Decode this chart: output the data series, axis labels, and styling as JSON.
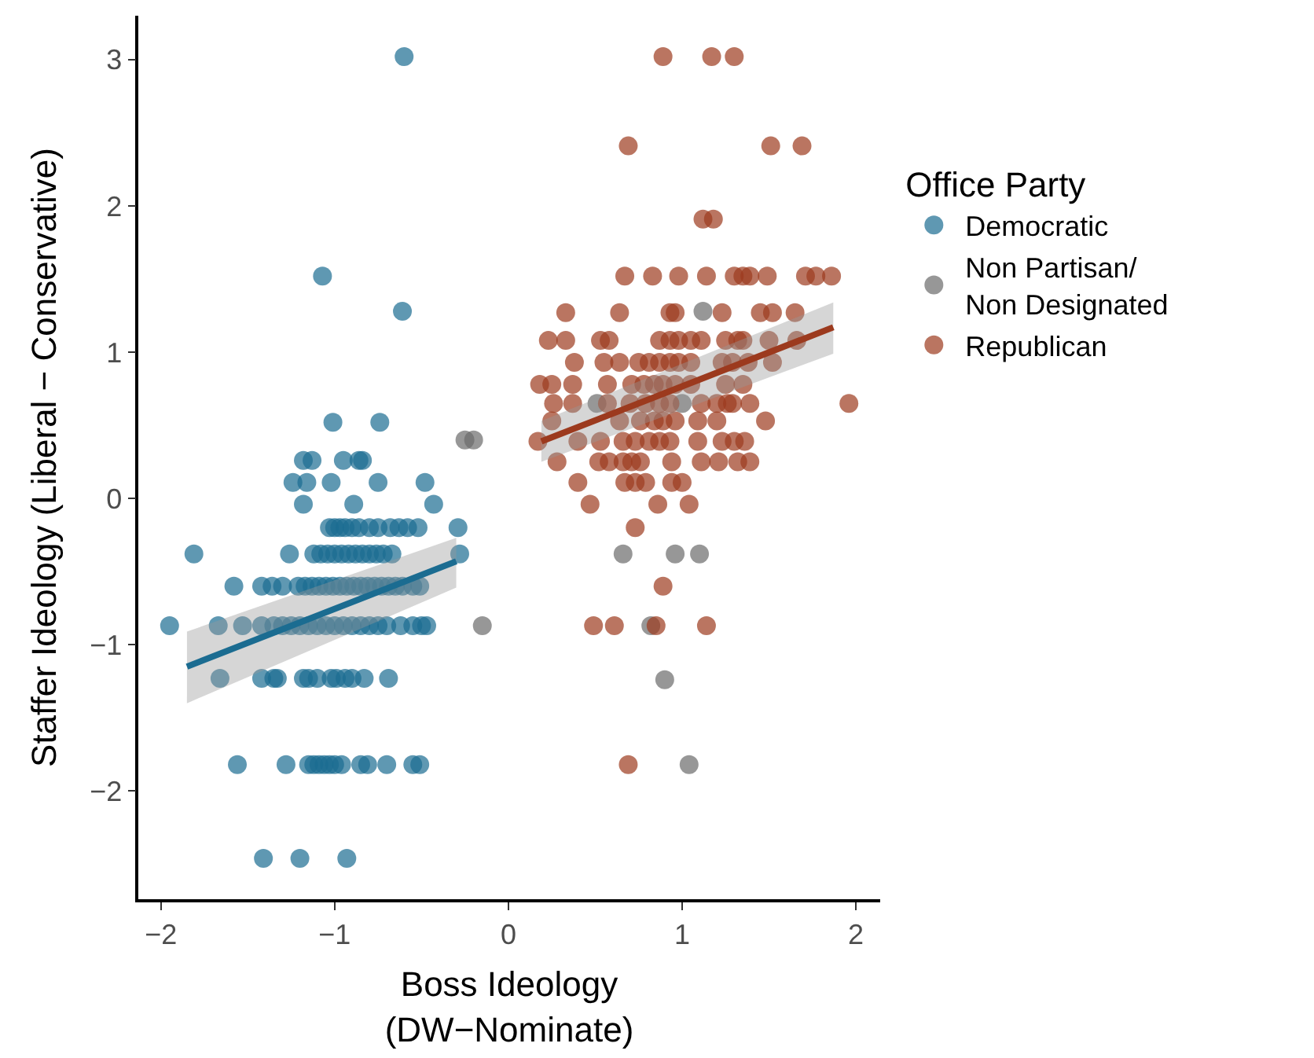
{
  "chart_data": {
    "type": "scatter",
    "xlabel": "Boss Ideology\n(DW−Nominate)",
    "ylabel": "Staffer Ideology (Liberal − Conservative)",
    "legend_title": "Office Party",
    "legend": "right",
    "grid": false,
    "marker": "circle",
    "line_style": "solid",
    "xlim": [
      -2.13,
      2.14
    ],
    "ylim": [
      -2.74,
      3.3
    ],
    "xticks": [
      {
        "value": -2,
        "label": "−2"
      },
      {
        "value": -1,
        "label": "−1"
      },
      0,
      1,
      2
    ],
    "yticks": [
      {
        "value": -2,
        "label": "−2"
      },
      {
        "value": -1,
        "label": "−1"
      },
      0,
      1,
      2,
      3
    ],
    "series": [
      {
        "name": "Democratic",
        "color": "#1b6c91",
        "x": [
          -0.6,
          -1.07,
          -0.61,
          -1.01,
          -0.74,
          -1.18,
          -1.13,
          -0.95,
          -0.86,
          -0.84,
          -1.24,
          -1.16,
          -1.02,
          -0.75,
          -0.48,
          -1.18,
          -0.89,
          -0.43,
          -1.03,
          -1.0,
          -0.97,
          -0.94,
          -0.9,
          -0.86,
          -0.8,
          -0.75,
          -0.68,
          -0.63,
          -0.58,
          -0.52,
          -0.29,
          -1.81,
          -1.26,
          -1.12,
          -1.08,
          -1.04,
          -1.0,
          -0.96,
          -0.92,
          -0.88,
          -0.84,
          -0.8,
          -0.76,
          -0.72,
          -0.67,
          -0.28,
          -1.58,
          -1.42,
          -1.36,
          -1.3,
          -1.21,
          -1.17,
          -1.13,
          -1.09,
          -1.05,
          -1.01,
          -0.97,
          -0.93,
          -0.89,
          -0.85,
          -0.81,
          -0.77,
          -0.73,
          -0.69,
          -0.65,
          -0.61,
          -0.55,
          -0.51,
          -1.95,
          -1.67,
          -1.53,
          -1.42,
          -1.35,
          -1.3,
          -1.25,
          -1.2,
          -1.15,
          -1.1,
          -1.05,
          -1.0,
          -0.95,
          -0.9,
          -0.85,
          -0.8,
          -0.75,
          -0.7,
          -0.62,
          -0.55,
          -0.5,
          -0.47,
          -1.66,
          -1.42,
          -1.35,
          -1.33,
          -1.18,
          -1.15,
          -1.1,
          -1.02,
          -0.99,
          -0.94,
          -0.9,
          -0.83,
          -0.69,
          -1.56,
          -1.28,
          -1.15,
          -1.12,
          -1.09,
          -1.06,
          -1.03,
          -1.0,
          -0.96,
          -0.85,
          -0.81,
          -0.7,
          -0.55,
          -0.51,
          -1.41,
          -1.2,
          -0.93
        ],
        "values": [
          3.02,
          1.52,
          1.28,
          0.52,
          0.52,
          0.26,
          0.26,
          0.26,
          0.26,
          0.26,
          0.11,
          0.11,
          0.11,
          0.11,
          0.11,
          -0.04,
          -0.04,
          -0.04,
          -0.2,
          -0.2,
          -0.2,
          -0.2,
          -0.2,
          -0.2,
          -0.2,
          -0.2,
          -0.2,
          -0.2,
          -0.2,
          -0.2,
          -0.2,
          -0.38,
          -0.38,
          -0.38,
          -0.38,
          -0.38,
          -0.38,
          -0.38,
          -0.38,
          -0.38,
          -0.38,
          -0.38,
          -0.38,
          -0.38,
          -0.38,
          -0.38,
          -0.6,
          -0.6,
          -0.6,
          -0.6,
          -0.6,
          -0.6,
          -0.6,
          -0.6,
          -0.6,
          -0.6,
          -0.6,
          -0.6,
          -0.6,
          -0.6,
          -0.6,
          -0.6,
          -0.6,
          -0.6,
          -0.6,
          -0.6,
          -0.6,
          -0.6,
          -0.87,
          -0.87,
          -0.87,
          -0.87,
          -0.87,
          -0.87,
          -0.87,
          -0.87,
          -0.87,
          -0.87,
          -0.87,
          -0.87,
          -0.87,
          -0.87,
          -0.87,
          -0.87,
          -0.87,
          -0.87,
          -0.87,
          -0.87,
          -0.87,
          -0.87,
          -1.23,
          -1.23,
          -1.23,
          -1.23,
          -1.23,
          -1.23,
          -1.23,
          -1.23,
          -1.23,
          -1.23,
          -1.23,
          -1.23,
          -1.23,
          -1.82,
          -1.82,
          -1.82,
          -1.82,
          -1.82,
          -1.82,
          -1.82,
          -1.82,
          -1.82,
          -1.82,
          -1.82,
          -1.82,
          -1.82,
          -1.82,
          -2.46,
          -2.46,
          -2.46
        ]
      },
      {
        "name": "Non Partisan/\nNon Designated",
        "color": "#6b6b6b",
        "x": [
          -0.25,
          -0.2,
          -0.15,
          1.12,
          0.51,
          1.0,
          0.66,
          0.96,
          1.1,
          0.82,
          0.9,
          1.04
        ],
        "values": [
          0.4,
          0.4,
          -0.87,
          1.28,
          0.65,
          0.65,
          -0.38,
          -0.38,
          -0.38,
          -0.87,
          -1.24,
          -1.82
        ]
      },
      {
        "name": "Republican",
        "color": "#9c3a1e",
        "x": [
          0.89,
          1.17,
          1.3,
          0.69,
          1.51,
          1.69,
          1.12,
          1.18,
          0.73,
          0.89,
          0.49,
          0.61,
          0.85,
          1.14,
          0.69,
          0.67,
          0.83,
          0.98,
          1.14,
          1.3,
          1.35,
          1.39,
          1.49,
          1.71,
          1.77,
          1.86,
          0.33,
          0.64,
          0.93,
          0.96,
          1.23,
          1.45,
          1.52,
          1.65,
          0.23,
          0.33,
          0.53,
          0.58,
          0.87,
          0.93,
          0.98,
          1.05,
          1.11,
          1.25,
          1.32,
          1.35,
          1.5,
          1.66,
          0.38,
          0.55,
          0.64,
          0.75,
          0.81,
          0.87,
          0.93,
          0.98,
          1.05,
          1.23,
          1.29,
          1.38,
          1.52,
          0.18,
          0.25,
          0.37,
          0.57,
          0.71,
          0.78,
          0.84,
          0.89,
          0.96,
          1.05,
          1.25,
          1.35,
          0.26,
          0.37,
          0.57,
          0.7,
          0.79,
          0.87,
          0.93,
          1.11,
          1.2,
          1.26,
          1.29,
          1.39,
          1.96,
          0.25,
          0.64,
          0.76,
          0.84,
          0.89,
          0.96,
          1.09,
          1.2,
          1.48,
          0.17,
          0.4,
          0.53,
          0.66,
          0.73,
          0.81,
          0.87,
          0.93,
          1.09,
          1.23,
          1.3,
          1.36,
          0.28,
          0.52,
          0.58,
          0.66,
          0.71,
          0.76,
          0.94,
          1.11,
          1.21,
          1.32,
          1.39,
          0.4,
          0.67,
          0.73,
          0.79,
          0.94,
          1.0,
          0.47,
          0.86,
          1.04
        ],
        "values": [
          3.02,
          3.02,
          3.02,
          2.41,
          2.41,
          2.41,
          1.91,
          1.91,
          -0.2,
          -0.6,
          -0.87,
          -0.87,
          -0.87,
          -0.87,
          -1.82,
          1.52,
          1.52,
          1.52,
          1.52,
          1.52,
          1.52,
          1.52,
          1.52,
          1.52,
          1.52,
          1.52,
          1.27,
          1.27,
          1.27,
          1.27,
          1.27,
          1.27,
          1.27,
          1.27,
          1.08,
          1.08,
          1.08,
          1.08,
          1.08,
          1.08,
          1.08,
          1.08,
          1.08,
          1.08,
          1.08,
          1.08,
          1.08,
          1.08,
          0.93,
          0.93,
          0.93,
          0.93,
          0.93,
          0.93,
          0.93,
          0.93,
          0.93,
          0.93,
          0.93,
          0.93,
          0.93,
          0.78,
          0.78,
          0.78,
          0.78,
          0.78,
          0.78,
          0.78,
          0.78,
          0.78,
          0.78,
          0.78,
          0.78,
          0.65,
          0.65,
          0.65,
          0.65,
          0.65,
          0.65,
          0.65,
          0.65,
          0.65,
          0.65,
          0.65,
          0.65,
          0.65,
          0.53,
          0.53,
          0.53,
          0.53,
          0.53,
          0.53,
          0.53,
          0.53,
          0.53,
          0.39,
          0.39,
          0.39,
          0.39,
          0.39,
          0.39,
          0.39,
          0.39,
          0.39,
          0.39,
          0.39,
          0.39,
          0.25,
          0.25,
          0.25,
          0.25,
          0.25,
          0.25,
          0.25,
          0.25,
          0.25,
          0.25,
          0.25,
          0.11,
          0.11,
          0.11,
          0.11,
          0.11,
          0.11,
          -0.04,
          -0.04,
          -0.04
        ]
      },
      {
        "type": "line",
        "marker": "none",
        "color": "#1b6c91",
        "x": [
          -1.85,
          -0.3
        ],
        "values": [
          -1.15,
          -0.43
        ],
        "lower": [
          -1.4,
          -0.61
        ],
        "upper": [
          -0.91,
          -0.27
        ]
      },
      {
        "type": "line",
        "marker": "none",
        "color": "#9c3a1e",
        "x": [
          0.19,
          1.87
        ],
        "values": [
          0.39,
          1.17
        ],
        "lower": [
          0.25,
          0.99
        ],
        "upper": [
          0.53,
          1.34
        ]
      }
    ]
  }
}
